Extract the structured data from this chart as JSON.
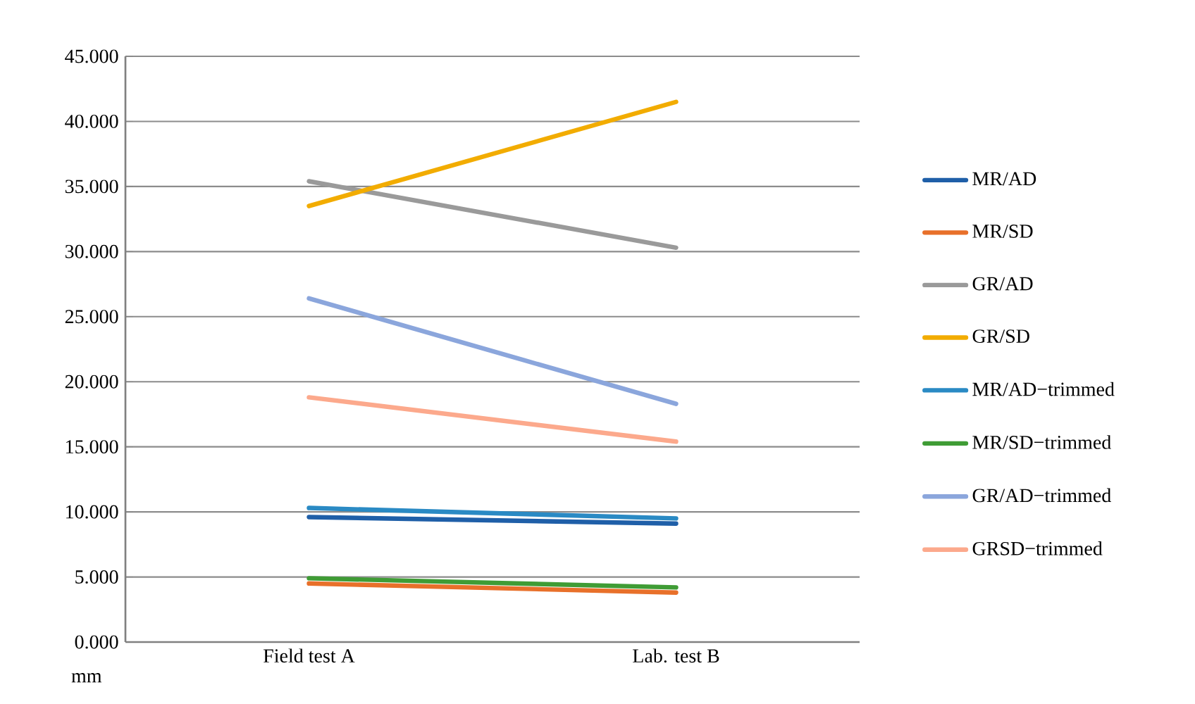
{
  "chart_data": {
    "type": "line",
    "ylabel": "mm",
    "categories": [
      "Field test A",
      "Lab. test B"
    ],
    "series": [
      {
        "name": "MR/AD",
        "color": "#1f5fa8",
        "values": [
          9.6,
          9.1
        ]
      },
      {
        "name": "MR/SD",
        "color": "#e8702a",
        "values": [
          4.5,
          3.8
        ]
      },
      {
        "name": "GR/AD",
        "color": "#9a9a9a",
        "values": [
          35.4,
          30.3
        ]
      },
      {
        "name": "GR/SD",
        "color": "#f2ac00",
        "values": [
          33.5,
          41.5
        ]
      },
      {
        "name": "MR/AD−trimmed",
        "color": "#2a8ac4",
        "values": [
          10.3,
          9.5
        ]
      },
      {
        "name": "MR/SD−trimmed",
        "color": "#3f9c35",
        "values": [
          4.9,
          4.2
        ]
      },
      {
        "name": "GR/AD−trimmed",
        "color": "#8ba6dc",
        "values": [
          26.4,
          18.3
        ]
      },
      {
        "name": "GRSD−trimmed",
        "color": "#fca98c",
        "values": [
          18.8,
          15.4
        ]
      }
    ],
    "ylim": [
      0,
      45
    ],
    "yticks": [
      {
        "value": 0,
        "label": "0.000"
      },
      {
        "value": 5,
        "label": "5.000"
      },
      {
        "value": 10,
        "label": "10.000"
      },
      {
        "value": 15,
        "label": "15.000"
      },
      {
        "value": 20,
        "label": "20.000"
      },
      {
        "value": 25,
        "label": "25.000"
      },
      {
        "value": 30,
        "label": "30.000"
      },
      {
        "value": 35,
        "label": "35.000"
      },
      {
        "value": 40,
        "label": "40.000"
      },
      {
        "value": 45,
        "label": "45.000"
      }
    ],
    "grid": "y",
    "legend": "right",
    "marker": "none",
    "line_style": "solid"
  }
}
